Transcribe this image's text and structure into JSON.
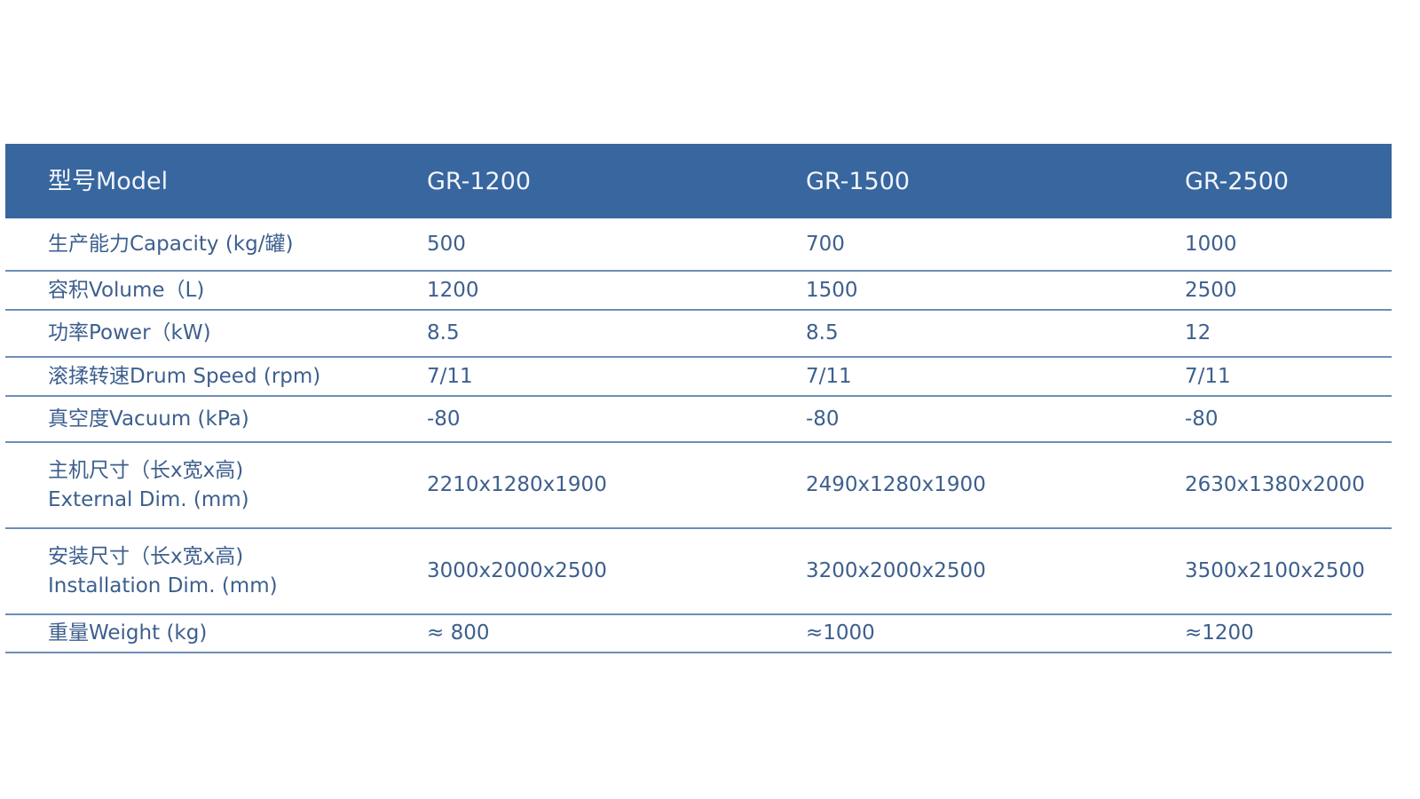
{
  "header": {
    "label": "型号Model",
    "models": [
      "GR-1200",
      "GR-1500",
      "GR-2500"
    ]
  },
  "colors": {
    "header_bg": "#38669e",
    "text": "#3d5f8e",
    "rule": "#6d8db8"
  },
  "rows": [
    {
      "label": [
        "生产能力Capacity (kg/罐)"
      ],
      "values": [
        "500",
        "700",
        "1000"
      ]
    },
    {
      "label": [
        "容积Volume（L)"
      ],
      "values": [
        "1200",
        "1500",
        "2500"
      ]
    },
    {
      "label": [
        "功率Power（kW)"
      ],
      "values": [
        "8.5",
        "8.5",
        "12"
      ]
    },
    {
      "label": [
        "滚揉转速Drum Speed (rpm)"
      ],
      "values": [
        "7/11",
        "7/11",
        "7/11"
      ]
    },
    {
      "label": [
        "真空度Vacuum (kPa)"
      ],
      "values": [
        "-80",
        "-80",
        "-80"
      ]
    },
    {
      "label": [
        "主机尺寸（长x宽x高)",
        "External Dim. (mm)"
      ],
      "values": [
        "2210x1280x1900",
        "2490x1280x1900",
        "2630x1380x2000"
      ]
    },
    {
      "label": [
        "安装尺寸（长x宽x高)",
        "Installation Dim. (mm)"
      ],
      "values": [
        "3000x2000x2500",
        "3200x2000x2500",
        "3500x2100x2500"
      ]
    },
    {
      "label": [
        "重量Weight (kg)"
      ],
      "values": [
        "≈  800",
        "≈1000",
        "≈1200"
      ]
    }
  ]
}
